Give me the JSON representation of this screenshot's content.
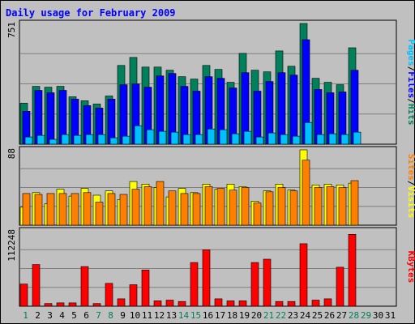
{
  "title": "Daily usage for February 2009",
  "chart_data": [
    {
      "type": "bar",
      "panel": "pages-files-hits",
      "ymax_label": "751",
      "ylim": [
        0,
        751
      ],
      "categories": [
        "1",
        "2",
        "3",
        "4",
        "5",
        "6",
        "7",
        "8",
        "9",
        "10",
        "11",
        "12",
        "13",
        "14",
        "15",
        "16",
        "17",
        "18",
        "19",
        "20",
        "21",
        "22",
        "23",
        "24",
        "25",
        "26",
        "27",
        "28",
        "29",
        "30",
        "31"
      ],
      "series": [
        {
          "name": "Hits",
          "color": "#00805b",
          "values": [
            255,
            360,
            355,
            360,
            295,
            270,
            250,
            300,
            490,
            540,
            480,
            480,
            460,
            420,
            405,
            490,
            465,
            385,
            565,
            460,
            450,
            580,
            485,
            751,
            410,
            385,
            370,
            600,
            0,
            0,
            0
          ]
        },
        {
          "name": "Files",
          "color": "#0000ff",
          "values": [
            205,
            335,
            320,
            335,
            280,
            240,
            225,
            280,
            370,
            375,
            355,
            425,
            440,
            360,
            330,
            420,
            410,
            350,
            445,
            330,
            390,
            445,
            430,
            650,
            340,
            320,
            325,
            460,
            0,
            0,
            0
          ]
        },
        {
          "name": "Pages",
          "color": "#00c0ff",
          "values": [
            45,
            55,
            30,
            60,
            55,
            60,
            60,
            40,
            50,
            115,
            90,
            80,
            75,
            60,
            60,
            95,
            90,
            65,
            80,
            45,
            70,
            60,
            50,
            135,
            60,
            65,
            60,
            75,
            0,
            0,
            0
          ]
        }
      ]
    },
    {
      "type": "bar",
      "panel": "sites-visits",
      "ymax_label": "88",
      "ylim": [
        0,
        88
      ],
      "categories": [
        "1",
        "2",
        "3",
        "4",
        "5",
        "6",
        "7",
        "8",
        "9",
        "10",
        "11",
        "12",
        "13",
        "14",
        "15",
        "16",
        "17",
        "18",
        "19",
        "20",
        "21",
        "22",
        "23",
        "24",
        "25",
        "26",
        "27",
        "28",
        "29",
        "30",
        "31"
      ],
      "series": [
        {
          "name": "Visits",
          "color": "#ffff00",
          "values": [
            21,
            38,
            25,
            42,
            34,
            43,
            35,
            40,
            30,
            51,
            48,
            44,
            33,
            43,
            38,
            48,
            42,
            48,
            45,
            28,
            40,
            48,
            41,
            88,
            47,
            48,
            47,
            49,
            0,
            0,
            0
          ]
        },
        {
          "name": "Sites",
          "color": "#ff8000",
          "values": [
            37,
            36,
            37,
            37,
            37,
            38,
            27,
            37,
            36,
            42,
            45,
            51,
            40,
            37,
            37,
            45,
            43,
            41,
            44,
            26,
            39,
            44,
            40,
            76,
            44,
            45,
            44,
            52,
            0,
            0,
            0
          ]
        }
      ]
    },
    {
      "type": "bar",
      "panel": "kbytes",
      "ymax_label": "112248",
      "ylim": [
        0,
        112248
      ],
      "categories": [
        "1",
        "2",
        "3",
        "4",
        "5",
        "6",
        "7",
        "8",
        "9",
        "10",
        "11",
        "12",
        "13",
        "14",
        "15",
        "16",
        "17",
        "18",
        "19",
        "20",
        "21",
        "22",
        "23",
        "24",
        "25",
        "26",
        "27",
        "28",
        "29",
        "30",
        "31"
      ],
      "series": [
        {
          "name": "KBytes",
          "color": "#ff0000",
          "values": [
            33000,
            62000,
            4000,
            5000,
            5000,
            59000,
            4000,
            34000,
            11000,
            32000,
            54000,
            8000,
            9000,
            7000,
            65000,
            84000,
            11000,
            8000,
            8000,
            65000,
            70000,
            7000,
            7000,
            93000,
            9000,
            11000,
            58000,
            107000,
            0,
            0,
            0
          ]
        }
      ]
    }
  ],
  "legends": {
    "top": [
      {
        "text": "Pages",
        "color": "#00c0ff"
      },
      {
        "text": "/",
        "color": "#000000"
      },
      {
        "text": "Files",
        "color": "#0000ff"
      },
      {
        "text": "/",
        "color": "#000000"
      },
      {
        "text": "Hits",
        "color": "#00805b"
      }
    ],
    "mid": [
      {
        "text": "Sites",
        "color": "#ff8000"
      },
      {
        "text": "/",
        "color": "#000000"
      },
      {
        "text": "Visits",
        "color": "#ffff00"
      }
    ],
    "bot": [
      {
        "text": "KBytes",
        "color": "#ff0000"
      }
    ]
  },
  "weekend_days": [
    "1",
    "7",
    "8",
    "14",
    "15",
    "21",
    "22",
    "28",
    "29"
  ],
  "colors": {
    "weekday_label": "#000000",
    "weekend_label": "#00805b",
    "background": "#c0c0c0",
    "gridline": "#808080"
  }
}
